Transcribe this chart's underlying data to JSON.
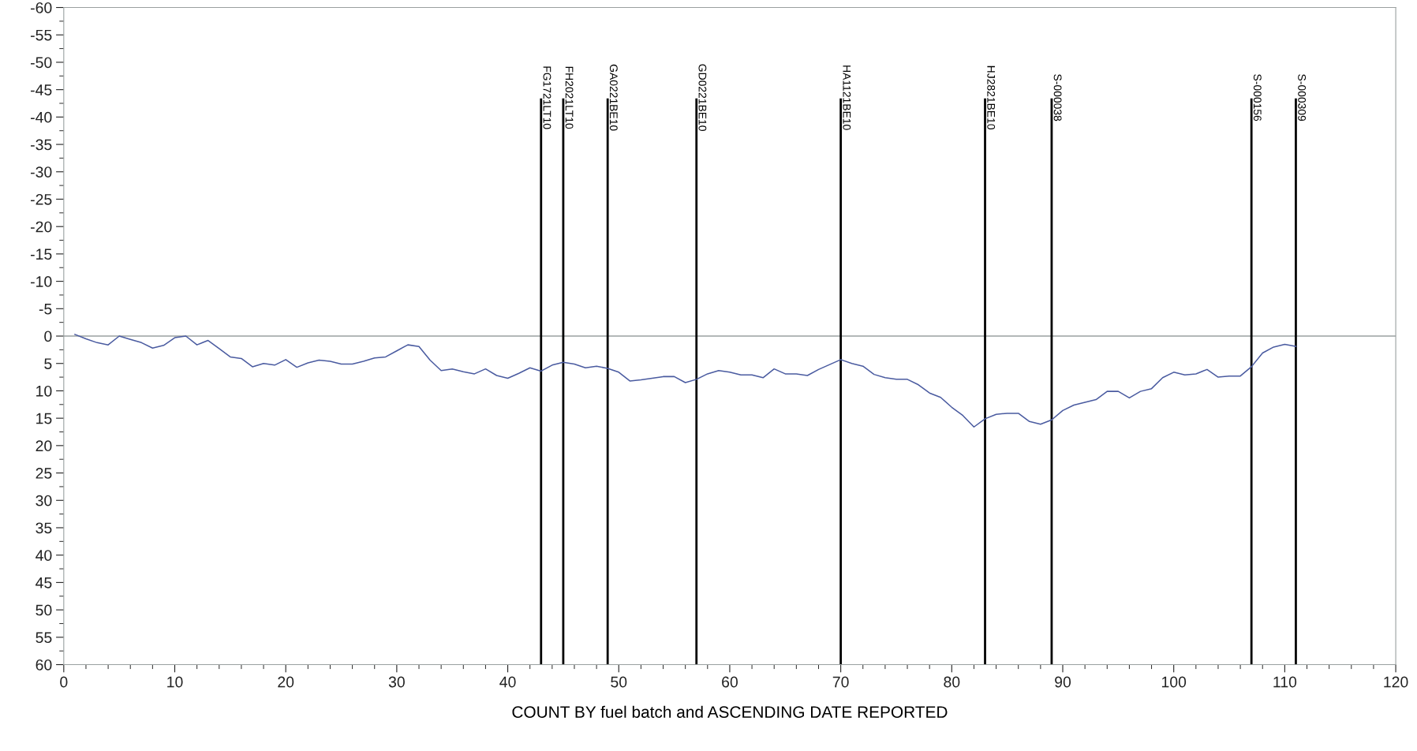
{
  "chart_data": {
    "type": "line",
    "xlabel": "COUNT BY fuel batch and ASCENDING DATE REPORTED",
    "x": [
      1,
      2,
      3,
      4,
      5,
      6,
      7,
      8,
      9,
      10,
      11,
      12,
      13,
      14,
      15,
      16,
      17,
      18,
      19,
      20,
      21,
      22,
      23,
      24,
      25,
      26,
      27,
      28,
      29,
      30,
      31,
      32,
      33,
      34,
      35,
      36,
      37,
      38,
      39,
      40,
      41,
      42,
      43,
      44,
      45,
      46,
      47,
      48,
      49,
      50,
      51,
      52,
      53,
      54,
      55,
      56,
      57,
      58,
      59,
      60,
      61,
      62,
      63,
      64,
      65,
      66,
      67,
      68,
      69,
      70,
      71,
      72,
      73,
      74,
      75,
      76,
      77,
      78,
      79,
      80,
      81,
      82,
      83,
      84,
      85,
      86,
      87,
      88,
      89,
      90,
      91,
      92,
      93,
      94,
      95,
      96,
      97,
      98,
      99,
      100,
      101,
      102,
      103,
      104,
      105,
      106,
      107,
      108,
      109,
      110,
      111
    ],
    "series": [
      {
        "color": "#4a5ba0",
        "values": [
          -0.3,
          0.5,
          1.2,
          1.6,
          0,
          0.6,
          1.2,
          2.2,
          1.7,
          0.3,
          0,
          1.6,
          0.8,
          2.3,
          3.8,
          4.1,
          5.6,
          5.0,
          5.3,
          4.3,
          5.7,
          4.9,
          4.4,
          4.6,
          5.1,
          5.1,
          4.6,
          4.0,
          3.8,
          2.7,
          1.6,
          1.9,
          4.4,
          6.3,
          6.0,
          6.5,
          6.9,
          6.0,
          7.2,
          7.7,
          6.8,
          5.8,
          6.4,
          5.3,
          4.8,
          5.1,
          5.8,
          5.5,
          5.9,
          6.6,
          8.2,
          8.0,
          7.7,
          7.4,
          7.4,
          8.5,
          7.9,
          6.9,
          6.3,
          6.6,
          7.1,
          7.1,
          7.6,
          6.0,
          6.9,
          6.9,
          7.2,
          6.1,
          5.2,
          4.3,
          5.0,
          5.5,
          7.0,
          7.6,
          7.9,
          7.9,
          8.9,
          10.4,
          11.2,
          13.0,
          14.5,
          16.6,
          15.1,
          14.3,
          14.1,
          14.1,
          15.6,
          16.1,
          15.3,
          13.6,
          12.6,
          12.1,
          11.6,
          10.1,
          10.1,
          11.3,
          10.1,
          9.6,
          7.6,
          6.6,
          7.1,
          6.9,
          6.1,
          7.5,
          7.3,
          7.3,
          5.6,
          3.1,
          2.0,
          1.5,
          1.9
        ]
      }
    ],
    "xlim": [
      0,
      120
    ],
    "xticks": [
      0,
      10,
      20,
      30,
      40,
      50,
      60,
      70,
      80,
      90,
      100,
      110,
      120
    ],
    "ylim": [
      60,
      -60
    ],
    "yticks": [
      -60,
      -55,
      -50,
      -45,
      -40,
      -35,
      -30,
      -25,
      -20,
      -15,
      -10,
      -5,
      0,
      5,
      10,
      15,
      20,
      25,
      30,
      35,
      40,
      45,
      50,
      55,
      60
    ],
    "ref_lines": [
      {
        "axis": "y",
        "value": 0,
        "color": "#9aa0a0"
      },
      {
        "axis": "x",
        "value": 43,
        "label": "FG1721LT10",
        "color": "#000000"
      },
      {
        "axis": "x",
        "value": 45,
        "label": "FH2021LT10",
        "color": "#000000"
      },
      {
        "axis": "x",
        "value": 49,
        "label": "GA0221BE10",
        "color": "#000000"
      },
      {
        "axis": "x",
        "value": 57,
        "label": "GD0221BE10",
        "color": "#000000"
      },
      {
        "axis": "x",
        "value": 70,
        "label": "HA1121BE10",
        "color": "#000000"
      },
      {
        "axis": "x",
        "value": 83,
        "label": "HJ2821BE10",
        "color": "#000000"
      },
      {
        "axis": "x",
        "value": 89,
        "label": "S-000038",
        "color": "#000000"
      },
      {
        "axis": "x",
        "value": 107,
        "label": "S-000156",
        "color": "#000000"
      },
      {
        "axis": "x",
        "value": 111,
        "label": "S-000309",
        "color": "#000000"
      }
    ],
    "grid": false,
    "legend": false,
    "marker": "none",
    "line_style": "solid"
  }
}
